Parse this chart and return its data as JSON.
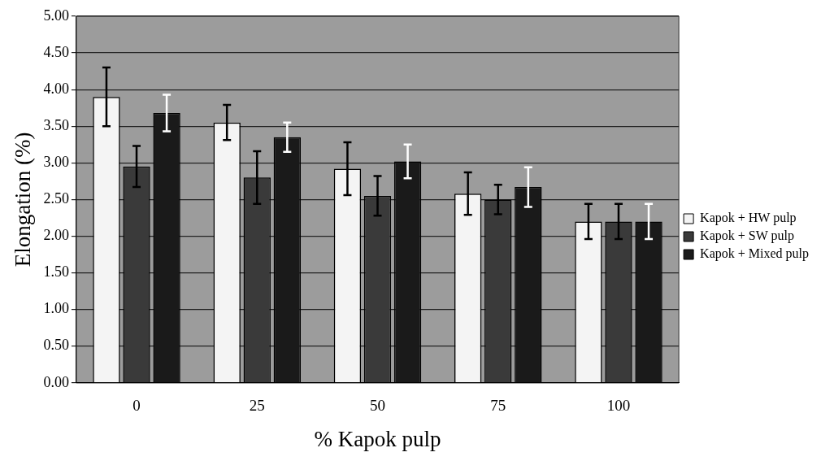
{
  "chart_data": {
    "type": "bar",
    "xlabel": "% Kapok pulp",
    "ylabel": "Elongation (%)",
    "categories": [
      "0",
      "25",
      "50",
      "75",
      "100"
    ],
    "series": [
      {
        "name": "Kapok + HW pulp",
        "color": "#f4f4f4",
        "values": [
          3.9,
          3.55,
          2.92,
          2.58,
          2.2
        ],
        "errors": [
          0.4,
          0.24,
          0.36,
          0.29,
          0.24
        ]
      },
      {
        "name": "Kapok + SW pulp",
        "color": "#3a3a3a",
        "values": [
          2.95,
          2.8,
          2.55,
          2.5,
          2.2
        ],
        "errors": [
          0.28,
          0.36,
          0.27,
          0.2,
          0.24
        ]
      },
      {
        "name": "Kapok + Mixed pulp",
        "color": "#1a1a1a",
        "values": [
          3.68,
          3.35,
          3.02,
          2.67,
          2.2
        ],
        "errors": [
          0.25,
          0.2,
          0.23,
          0.27,
          0.24
        ]
      }
    ],
    "ylim": [
      0,
      5
    ],
    "yticks": [
      {
        "value": 0,
        "label": "0.00"
      },
      {
        "value": 0.5,
        "label": "0.50"
      },
      {
        "value": 1,
        "label": "1.00"
      },
      {
        "value": 1.5,
        "label": "1.50"
      },
      {
        "value": 2,
        "label": "2.00"
      },
      {
        "value": 2.5,
        "label": "2.50"
      },
      {
        "value": 3,
        "label": "3.00"
      },
      {
        "value": 3.5,
        "label": "3.50"
      },
      {
        "value": 4,
        "label": "4.00"
      },
      {
        "value": 4.5,
        "label": "4.50"
      },
      {
        "value": 5,
        "label": "5.00"
      }
    ],
    "grid": "y",
    "legend": "right"
  }
}
